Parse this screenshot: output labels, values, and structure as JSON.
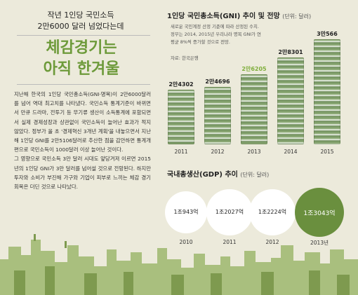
{
  "left": {
    "headline_line1": "작년 1인당 국민소득",
    "headline_line2": "2만6000 달러 넘었다는데",
    "big_title_line1": "체감경기는",
    "big_title_line2": "아직 한겨울",
    "paragraphs": [
      "지난해 한국의 1인당 국민총소득(GNI·명목)이 2만6000달러를 넘어 역대 최고치를 나타냈다. 국민소득 통계기준이 바뀌면서 만큐 드라마, 전투기 등 무기류 생산이 소득통계에 포함되면서 실제 경제성장과 상관없이 국민소득이 늘어난 효과가 적지 않았다. 정부가 올 초 '경제혁신 3개년 계획'을 내놓으면서 지난해 1인당 GNI를 2만5106달러로 추산한 점을 감안하면 통계개편으로 국민소득이 1000달러 이상 늘어난 것이다.",
      "그 영향으로 국민소득 3만 달러 시대도 앞당겨져 이르면 2015년의 1인당 GNI가 3만 달러를 넘어설 것으로 전망된다. 하지만 투자와 소비가 부진해 가구와 기업이 피부로 느끼는 체감 경기 회복은 더딘 것으로 나타났다."
    ]
  },
  "gni": {
    "title": "1인당 국민총소득(GNI) 추이 및 전망",
    "unit": "(단위: 달러)",
    "note": "새로운 국민계정 산정 기준에 따라 산정된 수치. 정부는 2014, 2015년 우리나라 명목 GNI가 연평균 8%씩 증가할 것으로 전망.",
    "source": "자료: 한국은행"
  },
  "gdp": {
    "title": "국내총생산(GDP) 추이",
    "unit": "(단위: 달러)"
  },
  "colors": {
    "accent_green": "#6a8f3e",
    "highlight_label": "#7fae3c",
    "background": "#eceadb"
  },
  "chart_data": [
    {
      "type": "bar",
      "title": "1인당 국민총소득(GNI) 추이 및 전망",
      "categories": [
        "2011",
        "2012",
        "2013",
        "2014",
        "2015"
      ],
      "labels": [
        "2만4302",
        "2만4696",
        "2만6205",
        "2만8301",
        "3만566"
      ],
      "values": [
        24302,
        24696,
        26205,
        28301,
        30566
      ],
      "highlight_index": 2
    },
    {
      "type": "bubble",
      "title": "국내총생산(GDP) 추이",
      "categories": [
        "2010",
        "2011",
        "2012",
        "2013년"
      ],
      "labels": [
        "1조943억",
        "1조2027억",
        "1조2224억",
        "1조3043억"
      ],
      "values": [
        10943,
        12027,
        12224,
        13043
      ],
      "highlight_index": 3
    }
  ]
}
